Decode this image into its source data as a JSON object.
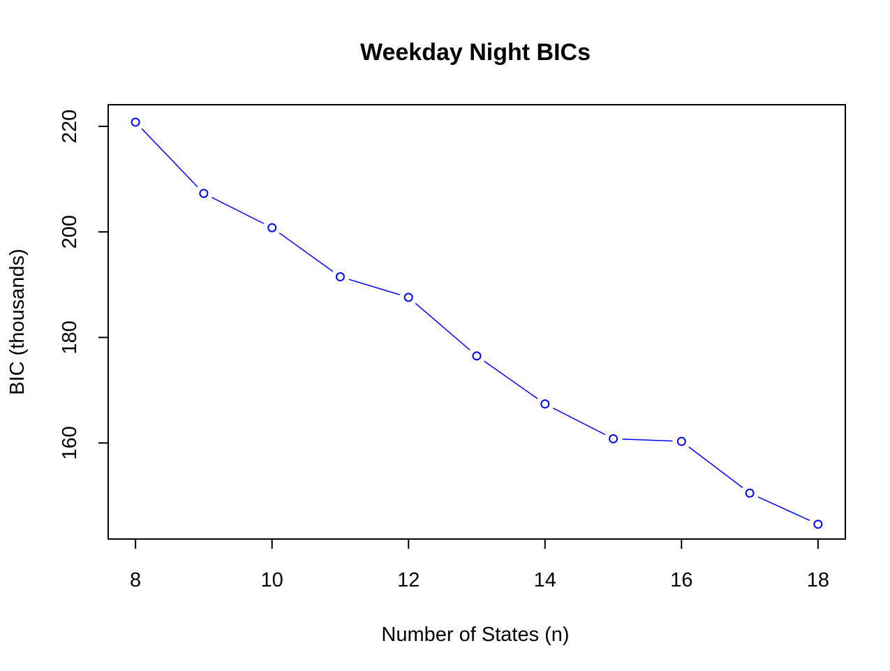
{
  "chart_data": {
    "type": "line",
    "title": "Weekday Night BICs",
    "xlabel": "Number of States (n)",
    "ylabel": "BIC (thousands)",
    "x": [
      8,
      9,
      10,
      11,
      12,
      13,
      14,
      15,
      16,
      17,
      18
    ],
    "xticks": [
      8,
      10,
      12,
      14,
      16,
      18
    ],
    "yticks": [
      160,
      180,
      200,
      220
    ],
    "xlim": [
      7.6,
      18.4
    ],
    "ylim": [
      141.8,
      224.1
    ],
    "grid": false,
    "legend": "none",
    "series": [
      {
        "values": [
          220.8,
          207.3,
          200.8,
          191.5,
          187.6,
          176.5,
          167.4,
          160.8,
          160.3,
          150.5,
          144.6
        ],
        "color": "#0000ff",
        "marker": "open-circle",
        "line": "line-with-gaps-at-points"
      }
    ],
    "frame_color": "#000000"
  }
}
